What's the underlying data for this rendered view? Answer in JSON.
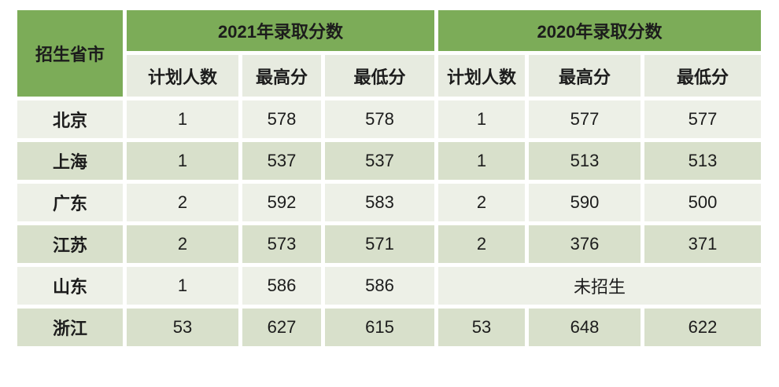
{
  "colors": {
    "header_green": "#7CAC58",
    "subheader_bg": "#E7EBE0",
    "row_light": "#EDF0E7",
    "row_dark": "#D8E0CB",
    "text": "#1C1C1C",
    "page_bg": "#FFFFFF"
  },
  "table": {
    "corner_header": "招生省市",
    "groups": [
      {
        "label": "2021年录取分数"
      },
      {
        "label": "2020年录取分数"
      }
    ],
    "subheaders": [
      "计划人数",
      "最高分",
      "最低分",
      "计划人数",
      "最高分",
      "最低分"
    ],
    "rows": [
      {
        "province": "北京",
        "cells": [
          "1",
          "578",
          "578",
          "1",
          "577",
          "577"
        ]
      },
      {
        "province": "上海",
        "cells": [
          "1",
          "537",
          "537",
          "1",
          "513",
          "513"
        ]
      },
      {
        "province": "广东",
        "cells": [
          "2",
          "592",
          "583",
          "2",
          "590",
          "500"
        ]
      },
      {
        "province": "江苏",
        "cells": [
          "2",
          "573",
          "571",
          "2",
          "376",
          "371"
        ]
      },
      {
        "province": "山东",
        "cells": [
          "1",
          "586",
          "586"
        ],
        "merged_cell": "未招生"
      },
      {
        "province": "浙江",
        "cells": [
          "53",
          "627",
          "615",
          "53",
          "648",
          "622"
        ]
      }
    ]
  },
  "chart_data": {
    "type": "table",
    "title": "",
    "corner_header": "招生省市",
    "column_groups": [
      "2021年录取分数",
      "2020年录取分数"
    ],
    "columns": [
      "招生省市",
      "2021 计划人数",
      "2021 最高分",
      "2021 最低分",
      "2020 计划人数",
      "2020 最高分",
      "2020 最低分"
    ],
    "rows": [
      [
        "北京",
        1,
        578,
        578,
        1,
        577,
        577
      ],
      [
        "上海",
        1,
        537,
        537,
        1,
        513,
        513
      ],
      [
        "广东",
        2,
        592,
        583,
        2,
        590,
        500
      ],
      [
        "江苏",
        2,
        573,
        571,
        2,
        376,
        371
      ],
      [
        "山东",
        1,
        586,
        586,
        "未招生",
        "未招生",
        "未招生"
      ],
      [
        "浙江",
        53,
        627,
        615,
        53,
        648,
        622
      ]
    ],
    "notes": "山东 row: 2020 columns merged into single cell reading 未招生 (no enrollment)"
  }
}
